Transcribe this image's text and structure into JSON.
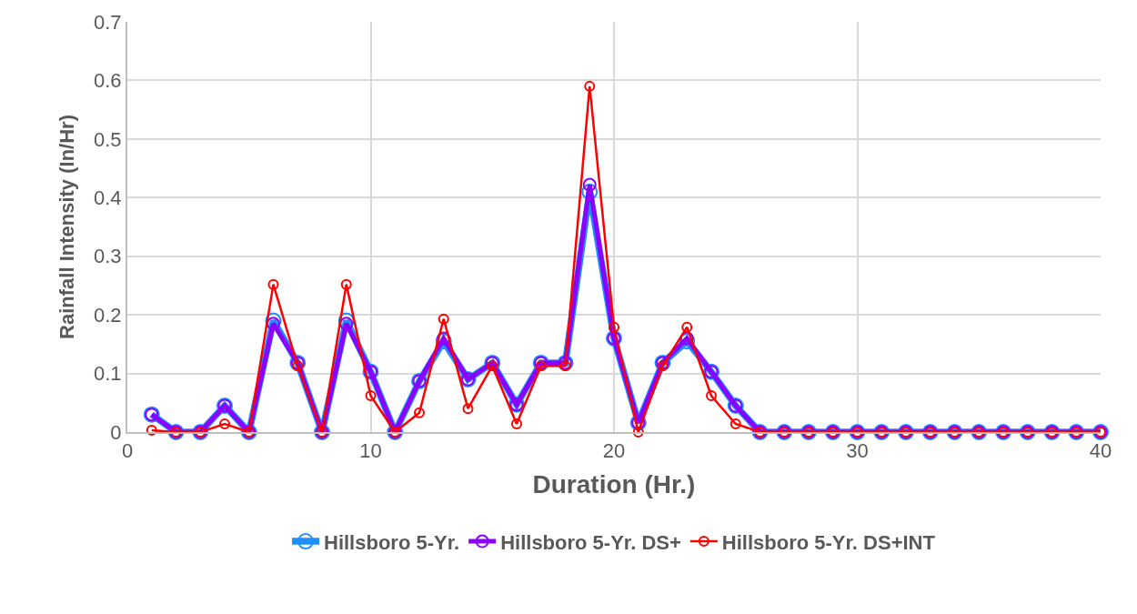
{
  "chart_data": {
    "type": "line",
    "xlabel": "Duration (Hr.)",
    "ylabel": "Rainfall Intensity (In/Hr)",
    "x": [
      1,
      2,
      3,
      4,
      5,
      6,
      7,
      8,
      9,
      10,
      11,
      12,
      13,
      14,
      15,
      16,
      17,
      18,
      19,
      20,
      21,
      22,
      23,
      24,
      25,
      26,
      27,
      28,
      29,
      30,
      31,
      32,
      33,
      34,
      35,
      36,
      37,
      38,
      39,
      40
    ],
    "series": [
      {
        "name": "Hillsboro 5-Yr.",
        "color": "#1f8fff",
        "values": [
          0.03,
          0,
          0,
          0.045,
          0,
          0.19,
          0.118,
          0,
          0.19,
          0.103,
          0,
          0.087,
          0.155,
          0.09,
          0.118,
          0.047,
          0.118,
          0.118,
          0.41,
          0.16,
          0.016,
          0.118,
          0.155,
          0.103,
          0.045,
          0,
          0,
          0,
          0,
          0,
          0,
          0,
          0,
          0,
          0,
          0,
          0,
          0,
          0,
          0
        ]
      },
      {
        "name": "Hillsboro 5-Yr. DS+",
        "color": "#8b00ff",
        "values": [
          0.03,
          0,
          0,
          0.045,
          0,
          0.185,
          0.118,
          0,
          0.185,
          0.103,
          0,
          0.087,
          0.16,
          0.09,
          0.118,
          0.047,
          0.118,
          0.118,
          0.422,
          0.16,
          0.016,
          0.118,
          0.16,
          0.103,
          0.045,
          0,
          0,
          0,
          0,
          0,
          0,
          0,
          0,
          0,
          0,
          0,
          0,
          0,
          0,
          0
        ]
      },
      {
        "name": "Hillsboro 5-Yr. DS+INT",
        "color": "#ff0000",
        "values": [
          0.003,
          0,
          0,
          0.014,
          0,
          0.252,
          0.113,
          0,
          0.252,
          0.062,
          0,
          0.033,
          0.193,
          0.04,
          0.113,
          0.014,
          0.113,
          0.113,
          0.59,
          0.179,
          0,
          0.113,
          0.179,
          0.062,
          0.014,
          0,
          0,
          0,
          0,
          0,
          0,
          0,
          0,
          0,
          0,
          0,
          0,
          0,
          0,
          0
        ]
      }
    ],
    "xlim": [
      0,
      40
    ],
    "xticks": [
      0,
      10,
      20,
      30,
      40
    ],
    "ylim": [
      0,
      0.7
    ],
    "yticks": [
      0,
      0.1,
      0.2,
      0.3,
      0.4,
      0.5,
      0.6,
      0.7
    ],
    "grid": true,
    "legend": "bottom",
    "marker": "circle",
    "line_style": "solid"
  }
}
